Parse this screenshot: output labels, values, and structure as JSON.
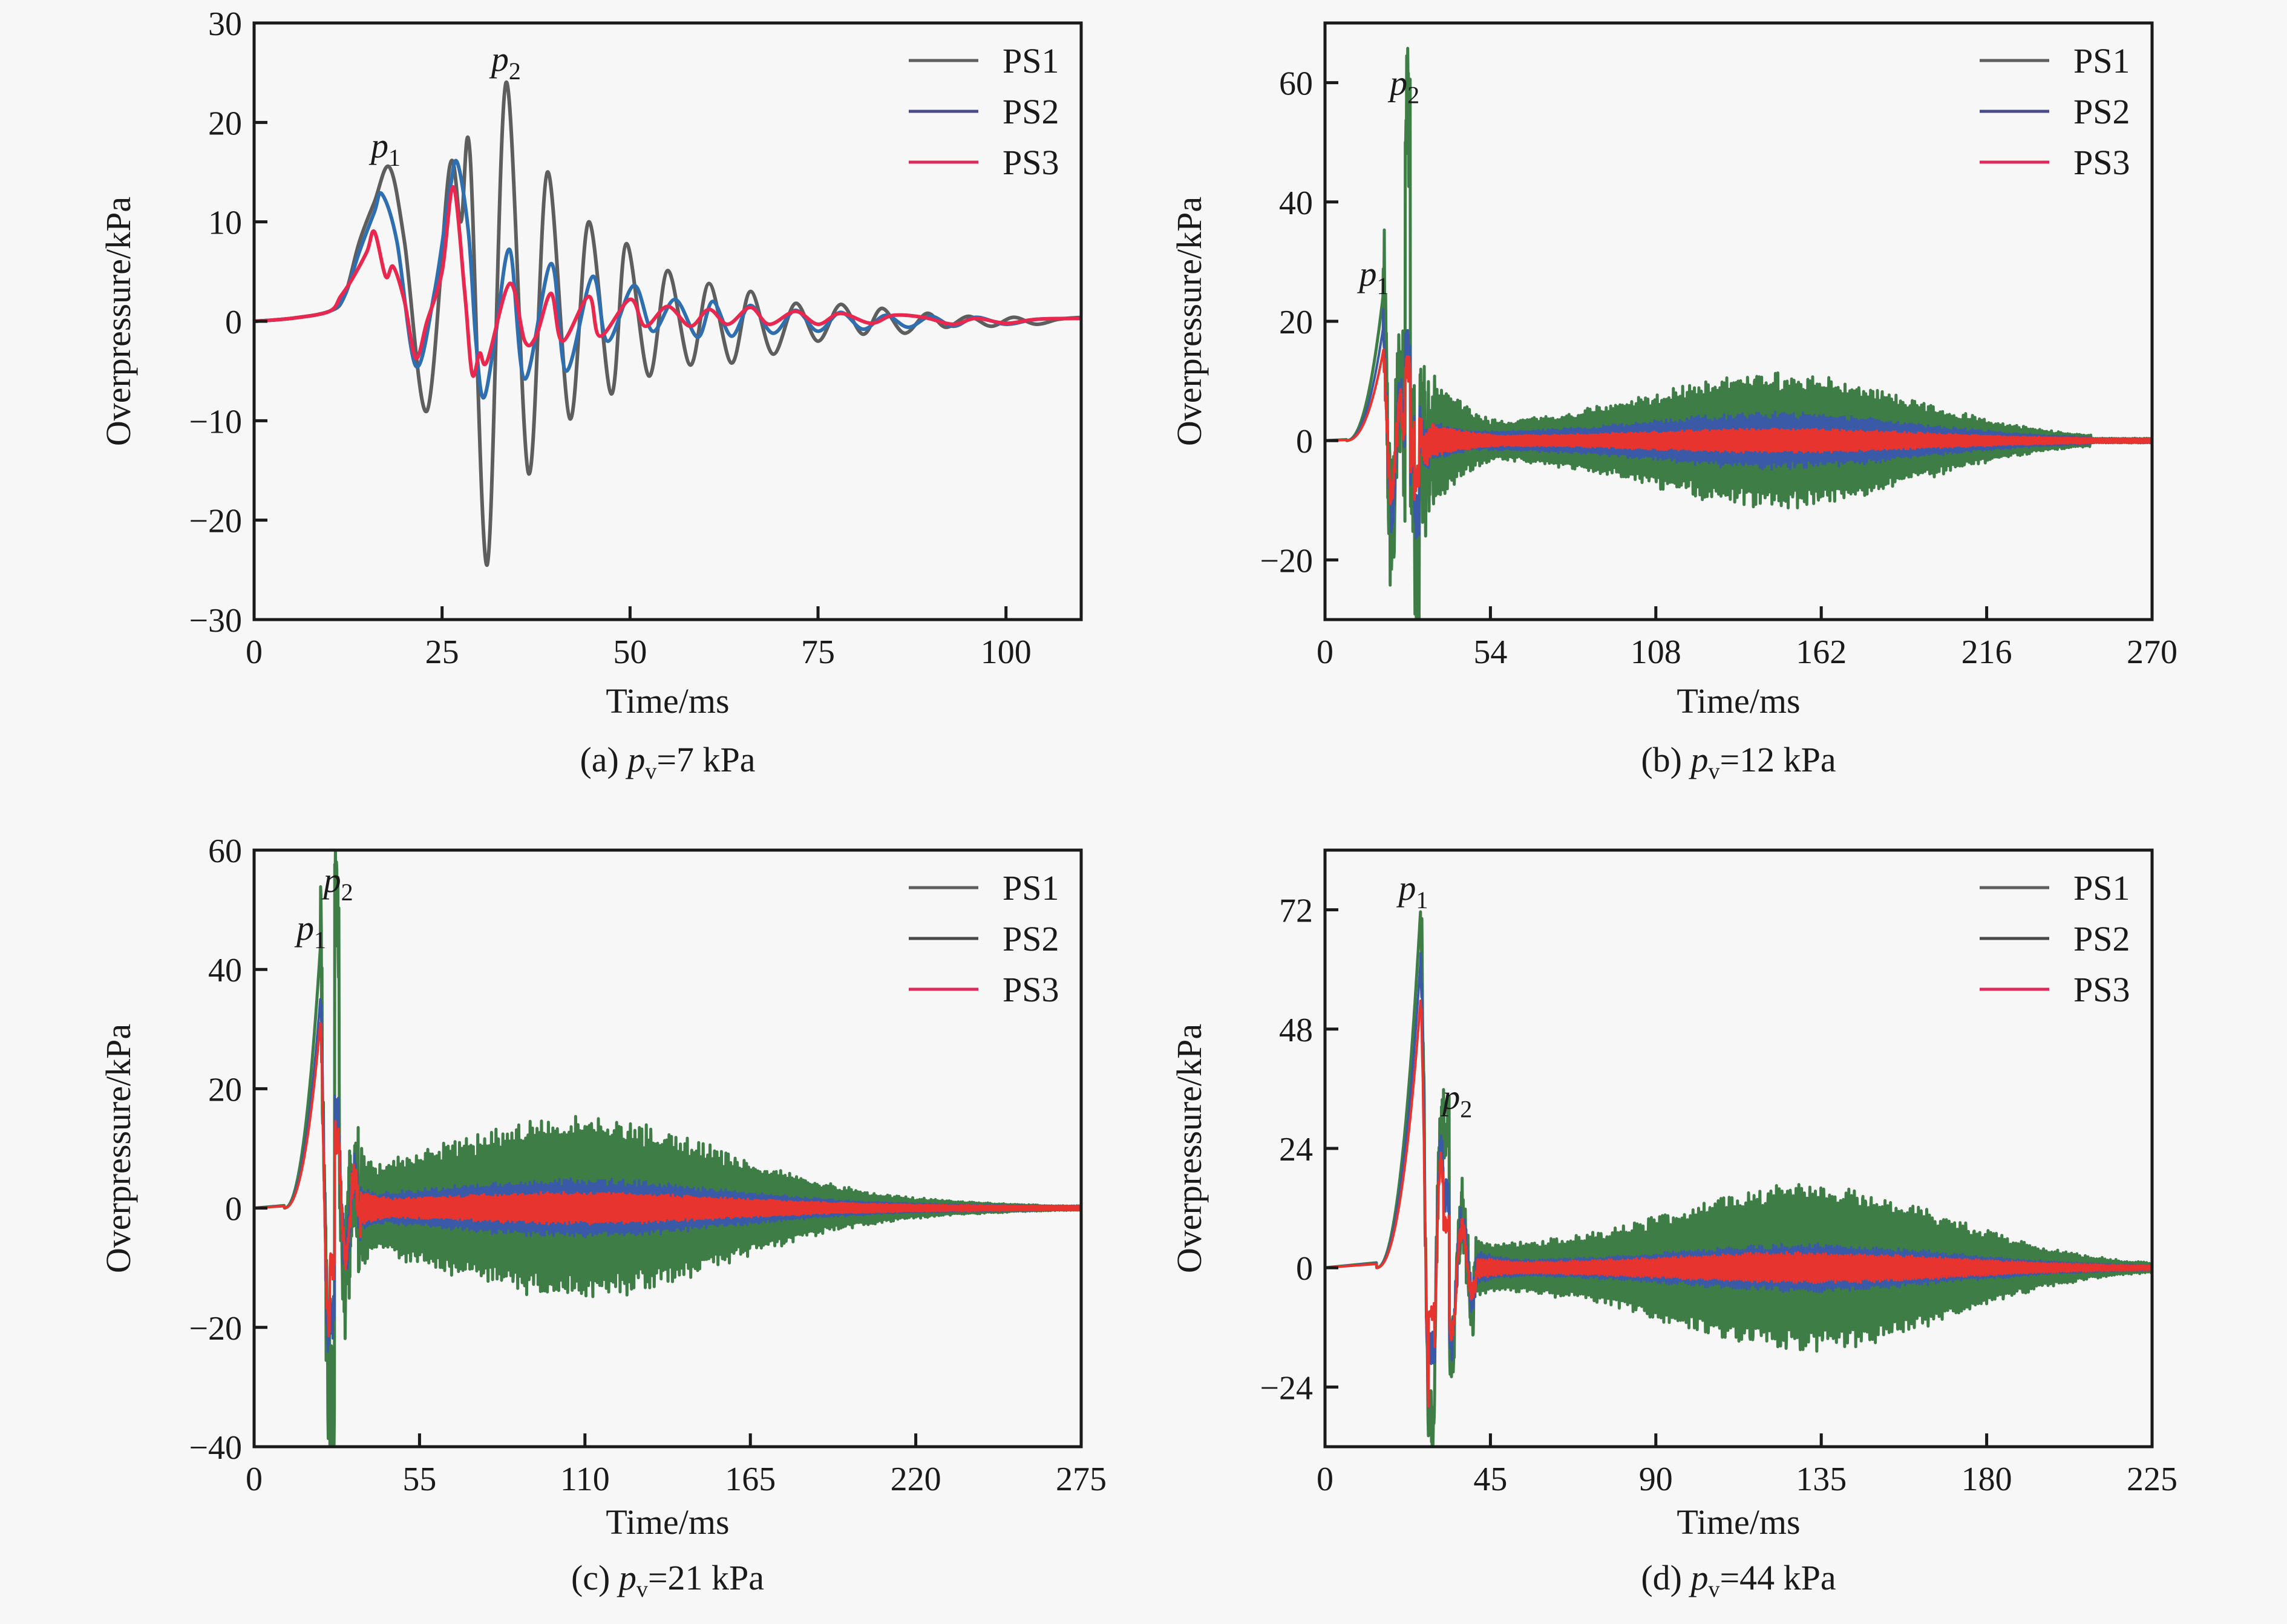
{
  "figure": {
    "legend_placement": "top-right"
  },
  "chart_data": [
    {
      "type": "line",
      "panel": "a",
      "caption": {
        "prefix": "(a) ",
        "var": "p",
        "sub": "v",
        "suffix": "=7 kPa"
      },
      "xlabel": "Time/ms",
      "ylabel": "Overpressure/kPa",
      "xlim": [
        0,
        110
      ],
      "ylim": [
        -30,
        30
      ],
      "xticks": [
        0,
        25,
        50,
        75,
        100
      ],
      "yticks": [
        -30,
        -20,
        -10,
        0,
        10,
        20,
        30
      ],
      "annotations": [
        {
          "label": "p",
          "sub": "1",
          "x": 17.5,
          "y": 16.5
        },
        {
          "label": "p",
          "sub": "2",
          "x": 33.5,
          "y": 25.2
        }
      ],
      "series": [
        {
          "name": "PS1",
          "color": "#5a5a5a",
          "points": [
            [
              0,
              0
            ],
            [
              5,
              0.3
            ],
            [
              10,
              1
            ],
            [
              12,
              2.5
            ],
            [
              14,
              8
            ],
            [
              16,
              12
            ],
            [
              18,
              15.5
            ],
            [
              20,
              8
            ],
            [
              23,
              -9
            ],
            [
              26,
              15.5
            ],
            [
              27.5,
              10
            ],
            [
              28.7,
              17
            ],
            [
              31,
              -24.5
            ],
            [
              33.5,
              24
            ],
            [
              36.5,
              -15.3
            ],
            [
              39,
              15
            ],
            [
              42,
              -9.8
            ],
            [
              44.5,
              10
            ],
            [
              47.5,
              -7.3
            ],
            [
              49.5,
              7.8
            ],
            [
              52.5,
              -5.5
            ],
            [
              55,
              5.1
            ],
            [
              58,
              -4.4
            ],
            [
              60.5,
              3.8
            ],
            [
              63.5,
              -4.2
            ],
            [
              66,
              3
            ],
            [
              69,
              -3.3
            ],
            [
              72,
              1.8
            ],
            [
              75,
              -2
            ],
            [
              78,
              1.7
            ],
            [
              81,
              -1.3
            ],
            [
              83.5,
              1.3
            ],
            [
              86.5,
              -1.2
            ],
            [
              89.5,
              0.8
            ],
            [
              92,
              -0.6
            ],
            [
              95,
              0.5
            ],
            [
              98,
              -0.5
            ],
            [
              101,
              0.4
            ],
            [
              104,
              -0.3
            ],
            [
              107,
              0.2
            ],
            [
              110,
              0.4
            ]
          ]
        },
        {
          "name": "PS2",
          "color": "#3a5aa8",
          "points": [
            [
              0,
              0
            ],
            [
              5,
              0.3
            ],
            [
              10,
              1
            ],
            [
              12,
              2.5
            ],
            [
              14,
              7
            ],
            [
              16,
              11
            ],
            [
              17,
              12.8
            ],
            [
              19,
              8
            ],
            [
              21.5,
              -4.5
            ],
            [
              24,
              3
            ],
            [
              26,
              13
            ],
            [
              27,
              16
            ],
            [
              28.5,
              9
            ],
            [
              29.5,
              -2
            ],
            [
              30.5,
              -7.7
            ],
            [
              32,
              -2
            ],
            [
              34,
              7.2
            ],
            [
              36,
              -5.8
            ],
            [
              39.5,
              5.8
            ],
            [
              41.5,
              -5
            ],
            [
              45,
              4.5
            ],
            [
              47,
              -2
            ],
            [
              50.5,
              3.6
            ],
            [
              53,
              -1
            ],
            [
              56,
              2.2
            ],
            [
              59,
              -1.6
            ],
            [
              61,
              2
            ],
            [
              63.5,
              -1.5
            ],
            [
              66,
              1.6
            ],
            [
              69,
              -1.2
            ],
            [
              72,
              1.1
            ],
            [
              75,
              -1
            ],
            [
              78,
              0.9
            ],
            [
              81,
              -0.8
            ],
            [
              84,
              0.6
            ],
            [
              87,
              -0.6
            ],
            [
              90,
              0.5
            ],
            [
              93,
              -0.5
            ],
            [
              96,
              0.4
            ],
            [
              100,
              -0.3
            ],
            [
              104,
              0.2
            ],
            [
              110,
              0.3
            ]
          ]
        },
        {
          "name": "PS3",
          "color": "#e0264e",
          "points": [
            [
              0,
              0
            ],
            [
              5,
              0.3
            ],
            [
              10,
              1
            ],
            [
              11.5,
              2.5
            ],
            [
              13,
              4.2
            ],
            [
              15,
              7
            ],
            [
              16,
              9
            ],
            [
              17.5,
              4.5
            ],
            [
              18.5,
              5.5
            ],
            [
              20,
              2
            ],
            [
              21.5,
              -3.7
            ],
            [
              23,
              0
            ],
            [
              25,
              5
            ],
            [
              26.5,
              13.5
            ],
            [
              28,
              3
            ],
            [
              29,
              -5.3
            ],
            [
              30,
              -3.2
            ],
            [
              31,
              -4
            ],
            [
              34,
              3.8
            ],
            [
              36,
              -2
            ],
            [
              37.5,
              -1.5
            ],
            [
              39.5,
              2.8
            ],
            [
              41,
              -2
            ],
            [
              44.5,
              2.5
            ],
            [
              46,
              -1.5
            ],
            [
              50,
              2.2
            ],
            [
              52,
              -0.5
            ],
            [
              55,
              1.5
            ],
            [
              58,
              -0.5
            ],
            [
              60.5,
              1.2
            ],
            [
              63,
              -0.3
            ],
            [
              66,
              1.4
            ],
            [
              68.5,
              -0.3
            ],
            [
              72,
              1
            ],
            [
              75,
              -0.3
            ],
            [
              78,
              0.8
            ],
            [
              82,
              -0.2
            ],
            [
              85,
              0.6
            ],
            [
              89,
              0.4
            ],
            [
              93,
              -0.3
            ],
            [
              96,
              0.3
            ],
            [
              100,
              -0.2
            ],
            [
              104,
              0.2
            ],
            [
              110,
              0.3
            ]
          ]
        }
      ]
    },
    {
      "type": "line",
      "panel": "b",
      "caption": {
        "prefix": "(b) ",
        "var": "p",
        "sub": "v",
        "suffix": "=12 kPa"
      },
      "xlabel": "Time/ms",
      "ylabel": "Overpressure/kPa",
      "xlim": [
        0,
        270
      ],
      "ylim": [
        -30,
        70
      ],
      "xticks": [
        0,
        54,
        108,
        162,
        216,
        270
      ],
      "yticks": [
        -20,
        0,
        20,
        40,
        60
      ],
      "annotations": [
        {
          "label": "p",
          "sub": "1",
          "x": 16,
          "y": 26
        },
        {
          "label": "p",
          "sub": "2",
          "x": 26,
          "y": 58
        }
      ],
      "peaks": {
        "p1": {
          "t": 19,
          "PS1": 24.5,
          "PS2": 19,
          "PS3": 15
        },
        "p2": {
          "t": 27,
          "PS1": 56,
          "PS2": 15,
          "PS3": 12
        },
        "min": {
          "t": 30,
          "PS1": -23
        }
      },
      "envelope": {
        "start": 40,
        "end": 250,
        "bulge_center": 150,
        "PS1": 10,
        "PS2": 4,
        "PS3": 1.5
      },
      "series": [
        {
          "name": "PS1",
          "color": "#5a5a5a",
          "band_color": "#3f7d46"
        },
        {
          "name": "PS2",
          "color": "#3a5aa8",
          "band_color": "#3a5aa8"
        },
        {
          "name": "PS3",
          "color": "#e0264e",
          "band_color": "#e8342e"
        }
      ]
    },
    {
      "type": "line",
      "panel": "c",
      "caption": {
        "prefix": "(c) ",
        "var": "p",
        "sub": "v",
        "suffix": "=21 kPa"
      },
      "xlabel": "Time/ms",
      "ylabel": "Overpressure/kPa",
      "xlim": [
        0,
        275
      ],
      "ylim": [
        -40,
        60
      ],
      "xticks": [
        0,
        55,
        110,
        165,
        220,
        275
      ],
      "yticks": [
        -40,
        -20,
        0,
        20,
        40,
        60
      ],
      "annotations": [
        {
          "label": "p",
          "sub": "1",
          "x": 19,
          "y": 45
        },
        {
          "label": "p",
          "sub": "2",
          "x": 28,
          "y": 53
        }
      ],
      "peaks": {
        "p1": {
          "t": 22,
          "PS1": 43.5,
          "PS2": 35,
          "PS3": 31
        },
        "p2": {
          "t": 27.5,
          "PS1": 50.5,
          "PS2": 16,
          "PS3": 12
        },
        "min": {
          "t": 26,
          "PS1": -34
        }
      },
      "envelope": {
        "start": 35,
        "end": 265,
        "bulge_center": 110,
        "PS1": 13,
        "PS2": 4,
        "PS3": 2
      },
      "series": [
        {
          "name": "PS1",
          "color": "#5a5a5a",
          "band_color": "#3f7d46"
        },
        {
          "name": "PS2",
          "color": "#4a4a4a",
          "band_color": "#3a5aa8"
        },
        {
          "name": "PS3",
          "color": "#e0264e",
          "band_color": "#e8342e"
        }
      ]
    },
    {
      "type": "line",
      "panel": "d",
      "caption": {
        "prefix": "(d) ",
        "var": "p",
        "sub": "v",
        "suffix": "=44 kPa"
      },
      "xlabel": "Time/ms",
      "ylabel": "Overpressure/kPa",
      "xlim": [
        0,
        225
      ],
      "ylim": [
        -36,
        84
      ],
      "xticks": [
        0,
        45,
        90,
        135,
        180,
        225
      ],
      "yticks": [
        -24,
        0,
        24,
        48,
        72
      ],
      "annotations": [
        {
          "label": "p",
          "sub": "1",
          "x": 24,
          "y": 74
        },
        {
          "label": "p",
          "sub": "2",
          "x": 36,
          "y": 32
        }
      ],
      "peaks": {
        "p1": {
          "t": 26,
          "PS1": 72,
          "PS2": 62,
          "PS3": 54
        },
        "p2": {
          "t": 33,
          "PS1": 29,
          "PS2": 15,
          "PS3": 9
        },
        "min": {
          "t": 29,
          "PS1": -30
        }
      },
      "envelope": {
        "start": 45,
        "end": 225,
        "bulge_center": 133,
        "PS1": 15,
        "PS2": 4,
        "PS3": 2.5
      },
      "series": [
        {
          "name": "PS1",
          "color": "#5a5a5a",
          "band_color": "#3f7d46"
        },
        {
          "name": "PS2",
          "color": "#4a4a4a",
          "band_color": "#3a5aa8"
        },
        {
          "name": "PS3",
          "color": "#e0264e",
          "band_color": "#e8342e"
        }
      ]
    }
  ]
}
